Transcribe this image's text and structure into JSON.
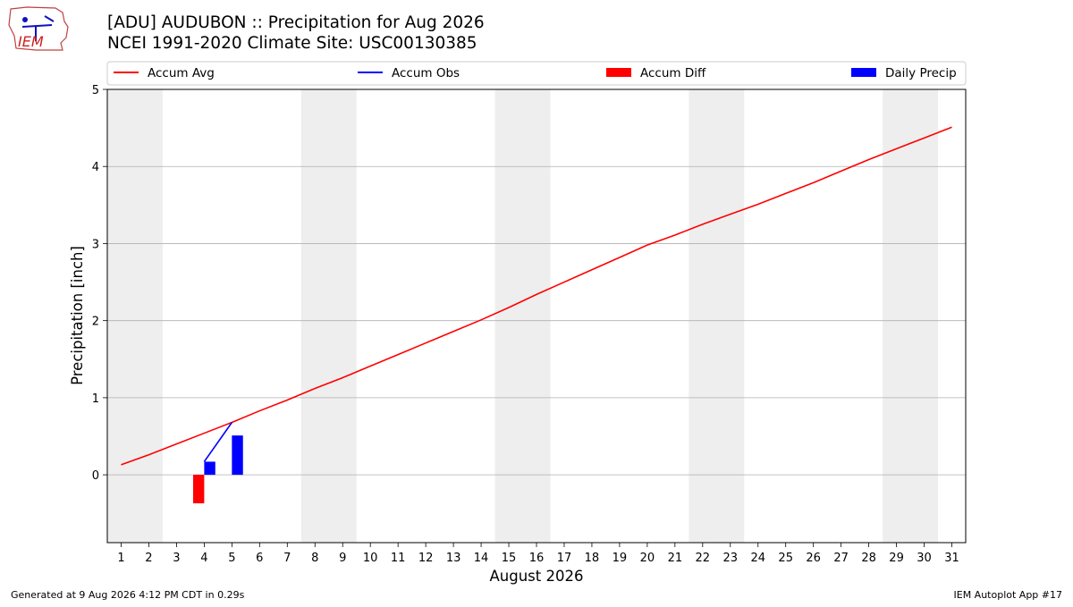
{
  "logo": {
    "text": "IEM"
  },
  "header": {
    "title": "[ADU] AUDUBON :: Precipitation for Aug 2026",
    "subtitle": "NCEI 1991-2020 Climate Site: USC00130385"
  },
  "footer": {
    "left": "Generated at 9 Aug 2026 4:12 PM CDT in 0.29s",
    "right": "IEM Autoplot App #17"
  },
  "chart_data": {
    "type": "bar",
    "xlabel": "August 2026",
    "ylabel": "Precipitation [inch]",
    "ylim": [
      -0.88,
      5.0
    ],
    "yticks": [
      0,
      1,
      2,
      3,
      4,
      5
    ],
    "xlim": [
      0.5,
      31.5
    ],
    "xticks": [
      1,
      2,
      3,
      4,
      5,
      6,
      7,
      8,
      9,
      10,
      11,
      12,
      13,
      14,
      15,
      16,
      17,
      18,
      19,
      20,
      21,
      22,
      23,
      24,
      25,
      26,
      27,
      28,
      29,
      30,
      31
    ],
    "grid": "horizontal",
    "weekend_shading": [
      [
        1,
        2
      ],
      [
        8,
        9
      ],
      [
        15,
        16
      ],
      [
        22,
        23
      ],
      [
        29,
        30
      ]
    ],
    "legend": {
      "placement": "top",
      "entries": [
        {
          "label": "Accum Avg",
          "kind": "line",
          "color": "#ff0000"
        },
        {
          "label": "Accum Obs",
          "kind": "line",
          "color": "#0000ff"
        },
        {
          "label": "Accum Diff",
          "kind": "bar",
          "color": "#ff0000"
        },
        {
          "label": "Daily Precip",
          "kind": "bar",
          "color": "#0000ff"
        }
      ]
    },
    "series": [
      {
        "name": "Accum Avg",
        "kind": "line",
        "color": "#ff0000",
        "x": [
          1,
          2,
          3,
          4,
          5,
          6,
          7,
          8,
          9,
          10,
          11,
          12,
          13,
          14,
          15,
          16,
          17,
          18,
          19,
          20,
          21,
          22,
          23,
          24,
          25,
          26,
          27,
          28,
          29,
          30,
          31
        ],
        "values": [
          0.13,
          0.26,
          0.4,
          0.54,
          0.68,
          0.83,
          0.97,
          1.12,
          1.26,
          1.41,
          1.56,
          1.71,
          1.86,
          2.01,
          2.17,
          2.34,
          2.5,
          2.66,
          2.82,
          2.98,
          3.11,
          3.25,
          3.38,
          3.51,
          3.65,
          3.79,
          3.94,
          4.09,
          4.23,
          4.37,
          4.51
        ]
      },
      {
        "name": "Accum Obs",
        "kind": "line",
        "color": "#0000ff",
        "x": [
          4,
          5
        ],
        "values": [
          0.17,
          0.68
        ]
      },
      {
        "name": "Accum Diff",
        "kind": "bar",
        "color": "#ff0000",
        "x": [
          3.8
        ],
        "values": [
          -0.37
        ]
      },
      {
        "name": "Daily Precip",
        "kind": "bar",
        "color": "#0000ff",
        "x": [
          4.2,
          5.2
        ],
        "values": [
          0.17,
          0.51
        ]
      }
    ]
  }
}
